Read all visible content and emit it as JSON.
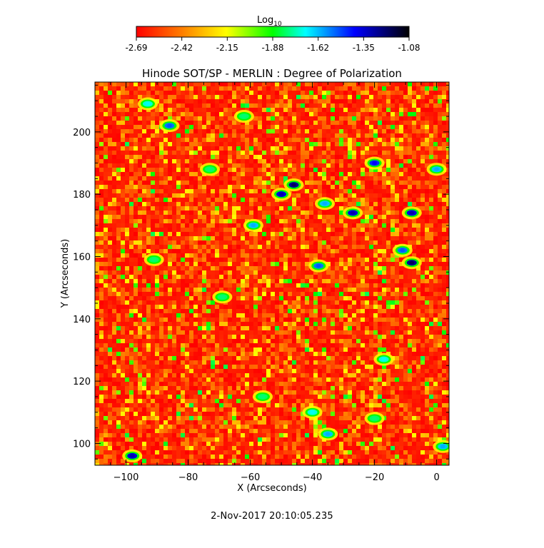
{
  "chart_data": {
    "type": "heatmap",
    "title": "Hinode SOT/SP - MERLIN : Degree of Polarization",
    "xlabel": "X (Arcseconds)",
    "ylabel": "Y (Arcseconds)",
    "xlim": [
      -110,
      4
    ],
    "ylim": [
      93,
      216
    ],
    "xticks": [
      -100,
      -80,
      -60,
      -40,
      -20,
      0
    ],
    "yticks": [
      100,
      120,
      140,
      160,
      180,
      200
    ],
    "colorbar": {
      "label_base": "Log",
      "label_sub": "10",
      "ticks": [
        "-2.69",
        "-2.42",
        "-2.15",
        "-1.88",
        "-1.62",
        "-1.35",
        "-1.08"
      ],
      "range": [
        -2.69,
        -1.08
      ],
      "colormap": [
        "#ff0000",
        "#ff8000",
        "#ffff00",
        "#00ff00",
        "#00ffff",
        "#0000ff",
        "#000000"
      ]
    },
    "high_polarization_regions": [
      {
        "x": -46,
        "y": 183,
        "value": -1.2
      },
      {
        "x": -50,
        "y": 180,
        "value": -1.3
      },
      {
        "x": -36,
        "y": 177,
        "value": -1.6
      },
      {
        "x": -27,
        "y": 174,
        "value": -1.3
      },
      {
        "x": -20,
        "y": 190,
        "value": -1.4
      },
      {
        "x": -8,
        "y": 174,
        "value": -1.3
      },
      {
        "x": -8,
        "y": 158,
        "value": -1.2
      },
      {
        "x": -11,
        "y": 162,
        "value": -1.5
      },
      {
        "x": -38,
        "y": 157,
        "value": -1.5
      },
      {
        "x": -86,
        "y": 202,
        "value": -1.5
      },
      {
        "x": -93,
        "y": 209,
        "value": -1.7
      },
      {
        "x": -62,
        "y": 205,
        "value": -1.8
      },
      {
        "x": -98,
        "y": 96,
        "value": -1.3
      },
      {
        "x": -59,
        "y": 170,
        "value": -1.6
      },
      {
        "x": 0,
        "y": 188,
        "value": -1.6
      },
      {
        "x": -91,
        "y": 159,
        "value": -1.8
      },
      {
        "x": -35,
        "y": 103,
        "value": -1.6
      },
      {
        "x": -56,
        "y": 115,
        "value": -1.8
      },
      {
        "x": -40,
        "y": 110,
        "value": -1.7
      },
      {
        "x": -20,
        "y": 108,
        "value": -1.8
      },
      {
        "x": -17,
        "y": 127,
        "value": -1.7
      },
      {
        "x": 2,
        "y": 99,
        "value": -1.6
      },
      {
        "x": -69,
        "y": 147,
        "value": -1.8
      },
      {
        "x": -73,
        "y": 188,
        "value": -1.8
      }
    ]
  },
  "footer": {
    "date": "2-Nov-2017 20:10:05.235"
  }
}
